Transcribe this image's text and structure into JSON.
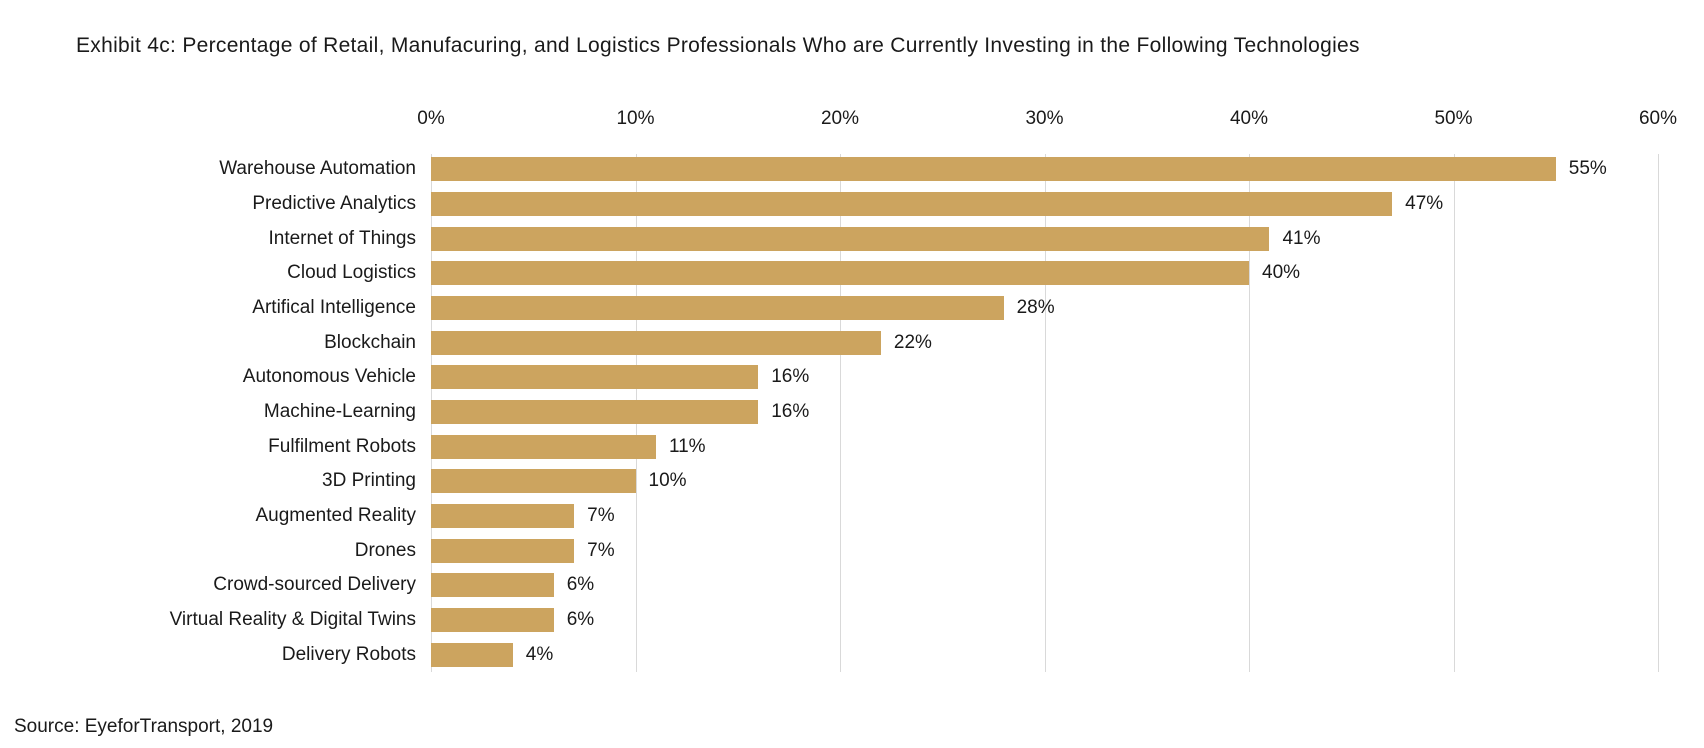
{
  "title": "Exhibit 4c: Percentage of Retail, Manufacuring, and Logistics Professionals Who are Currently Investing in the Following Technologies",
  "source": "Source: EyeforTransport, 2019",
  "colors": {
    "bar": "#cca45f",
    "gridline": "#d9d9d9",
    "text": "#1a1a1a",
    "background": "#ffffff"
  },
  "chart_data": {
    "type": "bar",
    "orientation": "horizontal",
    "title": "Exhibit 4c: Percentage of Retail, Manufacuring, and Logistics Professionals Who are Currently Investing in the Following Technologies",
    "categories": [
      "Warehouse Automation",
      "Predictive Analytics",
      "Internet of Things",
      "Cloud Logistics",
      "Artifical Intelligence",
      "Blockchain",
      "Autonomous Vehicle",
      "Machine-Learning",
      "Fulfilment Robots",
      "3D Printing",
      "Augmented Reality",
      "Drones",
      "Crowd-sourced Delivery",
      "Virtual Reality & Digital Twins",
      "Delivery Robots"
    ],
    "values": [
      55,
      47,
      41,
      40,
      28,
      22,
      16,
      16,
      11,
      10,
      7,
      7,
      6,
      6,
      4
    ],
    "value_labels": [
      "55%",
      "47%",
      "41%",
      "40%",
      "28%",
      "22%",
      "16%",
      "16%",
      "11%",
      "10%",
      "7%",
      "7%",
      "6%",
      "6%",
      "4%"
    ],
    "x_ticks": [
      "0%",
      "10%",
      "20%",
      "30%",
      "40%",
      "50%",
      "60%"
    ],
    "xlim": [
      0,
      60
    ],
    "xlabel": "",
    "ylabel": "",
    "grid": "vertical",
    "legend": "none",
    "source": "Source: EyeforTransport, 2019"
  }
}
